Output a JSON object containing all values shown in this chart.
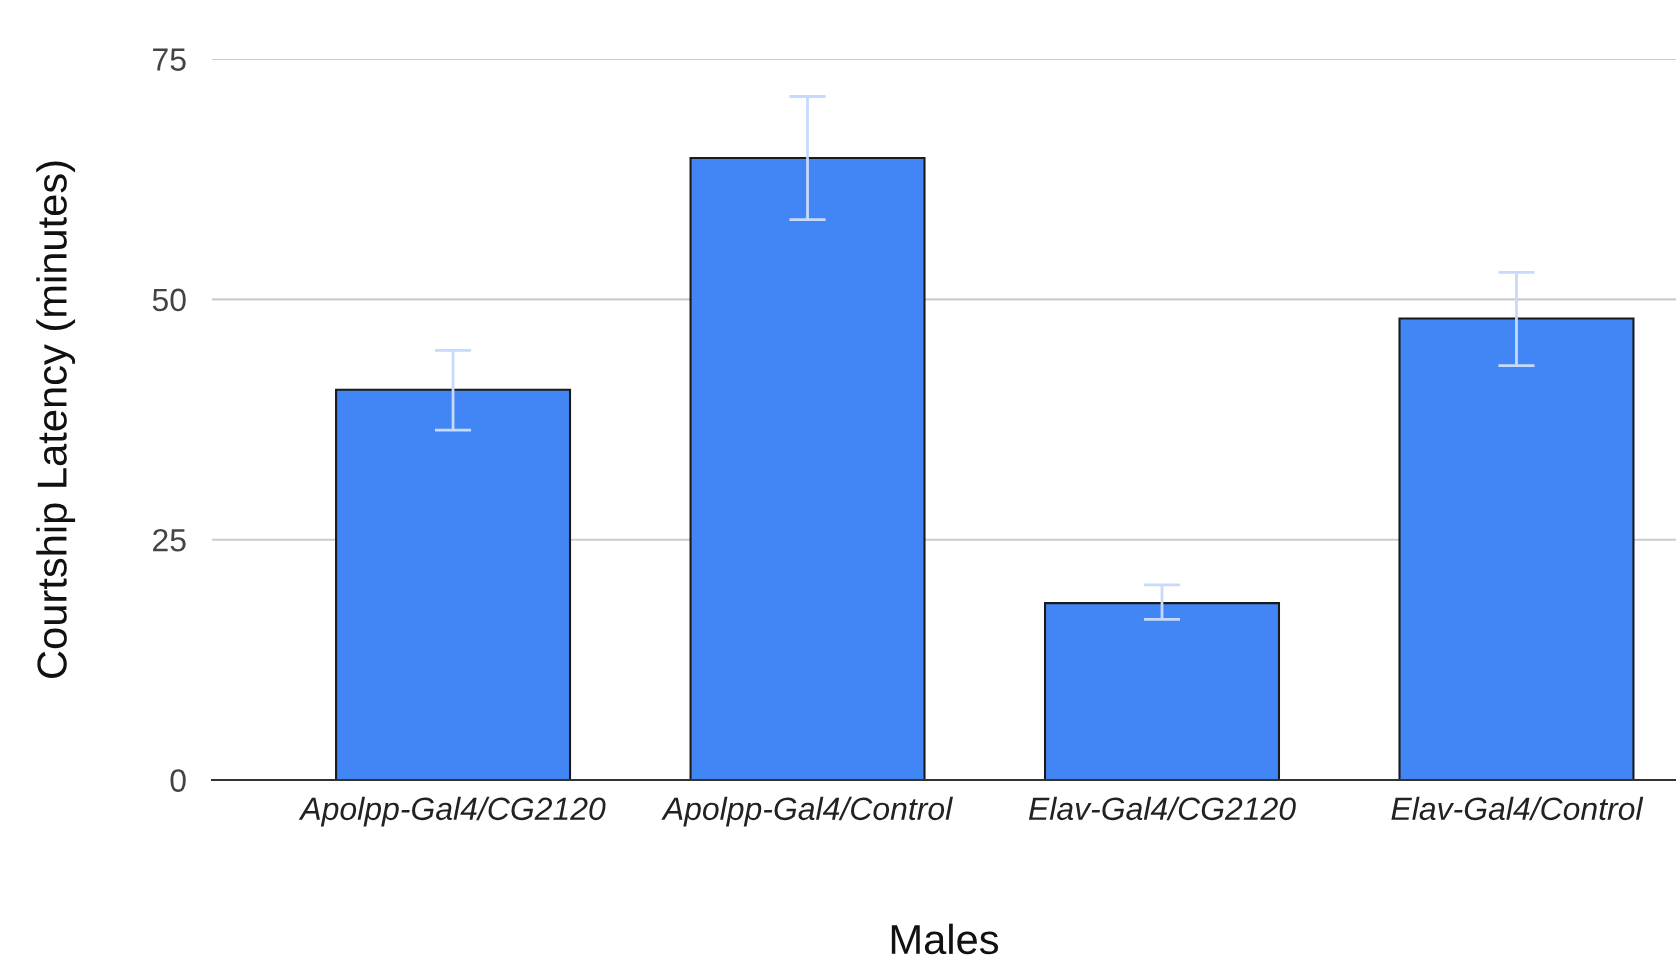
{
  "chart_data": {
    "type": "bar",
    "xlabel": "Males",
    "ylabel": "Courtship Latency (minutes)",
    "categories": [
      "Apolpp-Gal4/CG2120",
      "Apolpp-Gal4/Control",
      "Elav-Gal4/CG2120",
      "Elav-Gal4/Control"
    ],
    "values": [
      40.6,
      64.7,
      18.4,
      48.0
    ],
    "errors": [
      [
        36.4,
        44.7
      ],
      [
        58.3,
        71.1
      ],
      [
        16.7,
        20.3
      ],
      [
        43.1,
        52.8
      ]
    ],
    "color": "#4285f4",
    "ylim": [
      0,
      75
    ],
    "yticks": [
      0,
      25,
      50,
      75
    ],
    "grid": "y"
  }
}
